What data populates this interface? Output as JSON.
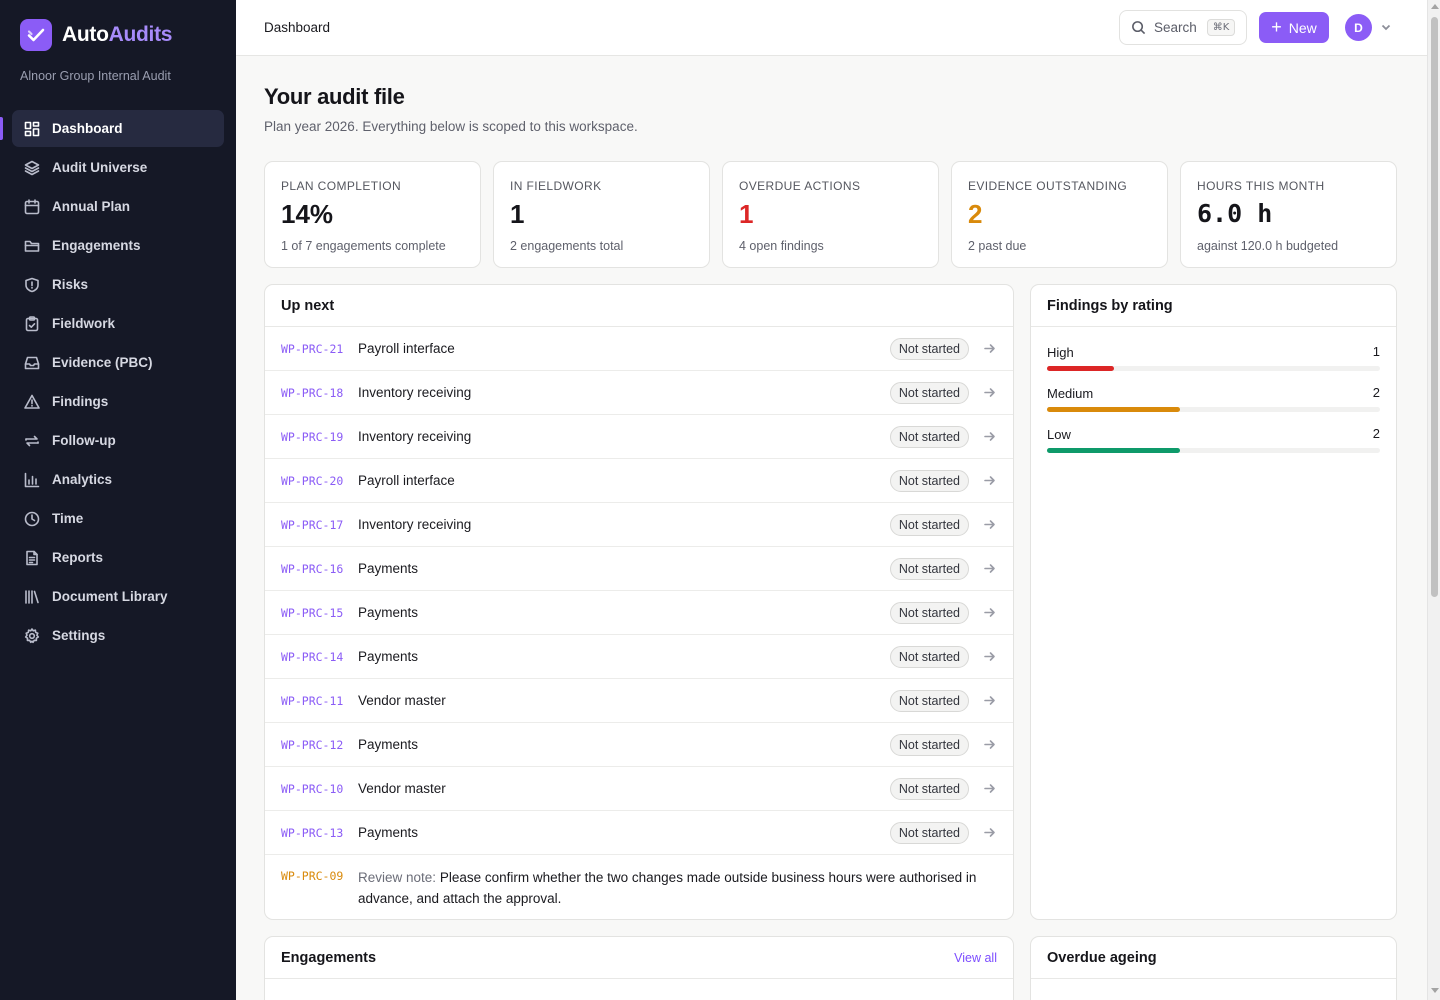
{
  "brand": {
    "name_part1": "Auto",
    "name_part2": "Audits",
    "org": "Alnoor Group Internal Audit"
  },
  "nav": [
    {
      "label": "Dashboard",
      "icon": "dashboard-icon",
      "active": true
    },
    {
      "label": "Audit Universe",
      "icon": "layers-icon"
    },
    {
      "label": "Annual Plan",
      "icon": "calendar-icon"
    },
    {
      "label": "Engagements",
      "icon": "folder-icon"
    },
    {
      "label": "Risks",
      "icon": "shield-icon"
    },
    {
      "label": "Fieldwork",
      "icon": "clipboard-icon"
    },
    {
      "label": "Evidence (PBC)",
      "icon": "inbox-icon"
    },
    {
      "label": "Findings",
      "icon": "warning-icon"
    },
    {
      "label": "Follow-up",
      "icon": "repeat-icon"
    },
    {
      "label": "Analytics",
      "icon": "bar-chart-icon"
    },
    {
      "label": "Time",
      "icon": "clock-icon"
    },
    {
      "label": "Reports",
      "icon": "document-icon"
    },
    {
      "label": "Document Library",
      "icon": "library-icon"
    },
    {
      "label": "Settings",
      "icon": "gear-icon"
    }
  ],
  "header": {
    "breadcrumb": "Dashboard",
    "search_label": "Search",
    "search_shortcut": "⌘K",
    "new_label": "New",
    "avatar_initial": "D"
  },
  "page": {
    "title": "Your audit file",
    "subtitle": "Plan year 2026. Everything below is scoped to this workspace."
  },
  "stats": [
    {
      "label": "Plan completion",
      "value": "14%",
      "note": "1 of 7 engagements complete"
    },
    {
      "label": "In fieldwork",
      "value": "1",
      "note": "2 engagements total"
    },
    {
      "label": "Overdue actions",
      "value": "1",
      "note": "4 open findings"
    },
    {
      "label": "Evidence outstanding",
      "value": "2",
      "note": "2 past due"
    },
    {
      "label": "Hours this month",
      "value": "6.0 h",
      "note": "against 120.0 h budgeted"
    }
  ],
  "up_next": {
    "title": "Up next",
    "items": [
      {
        "code": "WP-PRC-21",
        "title": "Payroll interface",
        "status": "Not started"
      },
      {
        "code": "WP-PRC-18",
        "title": "Inventory receiving",
        "status": "Not started"
      },
      {
        "code": "WP-PRC-19",
        "title": "Inventory receiving",
        "status": "Not started"
      },
      {
        "code": "WP-PRC-20",
        "title": "Payroll interface",
        "status": "Not started"
      },
      {
        "code": "WP-PRC-17",
        "title": "Inventory receiving",
        "status": "Not started"
      },
      {
        "code": "WP-PRC-16",
        "title": "Payments",
        "status": "Not started"
      },
      {
        "code": "WP-PRC-15",
        "title": "Payments",
        "status": "Not started"
      },
      {
        "code": "WP-PRC-14",
        "title": "Payments",
        "status": "Not started"
      },
      {
        "code": "WP-PRC-11",
        "title": "Vendor master",
        "status": "Not started"
      },
      {
        "code": "WP-PRC-12",
        "title": "Payments",
        "status": "Not started"
      },
      {
        "code": "WP-PRC-10",
        "title": "Vendor master",
        "status": "Not started"
      },
      {
        "code": "WP-PRC-13",
        "title": "Payments",
        "status": "Not started"
      }
    ],
    "note": {
      "code": "WP-PRC-09",
      "label": "Review note:",
      "text": "Please confirm whether the two changes made outside business hours were authorised in advance, and attach the approval."
    }
  },
  "findings_by_rating": {
    "title": "Findings by rating",
    "max": 5,
    "ratings": [
      {
        "name": "High",
        "count": 1,
        "color": "#dc2626"
      },
      {
        "name": "Medium",
        "count": 2,
        "color": "#d98a0b"
      },
      {
        "name": "Low",
        "count": 2,
        "color": "#0e9a6a"
      }
    ]
  },
  "engagements": {
    "title": "Engagements",
    "view_all": "View all"
  },
  "overdue_ageing": {
    "title": "Overdue ageing"
  },
  "colors": {
    "accent": "#8b5cf6",
    "sidebar": "#151826",
    "danger": "#dc2626",
    "warning": "#d98a0b",
    "success": "#0e9a6a"
  }
}
